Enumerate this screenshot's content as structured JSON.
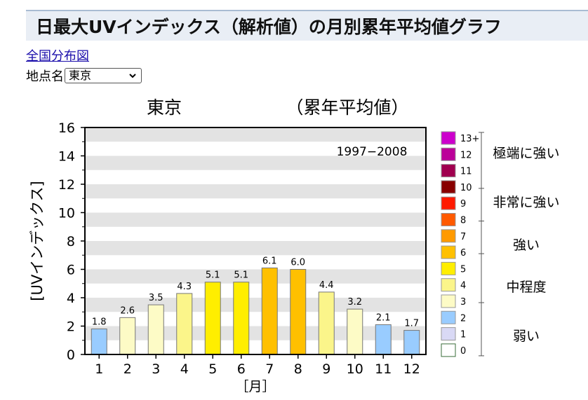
{
  "page": {
    "title": "日最大UVインデックス（解析値）の月別累年平均値グラフ",
    "nav_link": "全国分布図",
    "location_label": "地点名",
    "location_selected": "東京"
  },
  "chart_data": {
    "type": "bar",
    "title": "東京",
    "subtitle": "（累年平均値）",
    "annotation": "1997−2008",
    "ylabel": "[UVインデックス]",
    "xlabel": "［月］",
    "categories": [
      "1",
      "2",
      "3",
      "4",
      "5",
      "6",
      "7",
      "8",
      "9",
      "10",
      "11",
      "12"
    ],
    "values": [
      1.8,
      2.6,
      3.5,
      4.3,
      5.1,
      5.1,
      6.1,
      6.0,
      4.4,
      3.2,
      2.1,
      1.7
    ],
    "value_labels": [
      "1.8",
      "2.6",
      "3.5",
      "4.3",
      "5.1",
      "5.1",
      "6.1",
      "6.0",
      "4.4",
      "3.2",
      "2.1",
      "1.7"
    ],
    "ylim": [
      0,
      16
    ],
    "yticks": [
      "0",
      "2",
      "4",
      "6",
      "8",
      "10",
      "12",
      "14",
      "16"
    ],
    "grid": "alternating horizontal bands",
    "legend": {
      "placement": "right",
      "levels": [
        {
          "label": "13+",
          "color": "#cc00cc"
        },
        {
          "label": "12",
          "color": "#bb0099"
        },
        {
          "label": "11",
          "color": "#a0004f"
        },
        {
          "label": "10",
          "color": "#880000"
        },
        {
          "label": "9",
          "color": "#ff1a00"
        },
        {
          "label": "8",
          "color": "#ff5a00"
        },
        {
          "label": "7",
          "color": "#ff9a00"
        },
        {
          "label": "6",
          "color": "#ffc000"
        },
        {
          "label": "5",
          "color": "#ffee00"
        },
        {
          "label": "4",
          "color": "#fbf58a"
        },
        {
          "label": "3",
          "color": "#fdfbc6"
        },
        {
          "label": "2",
          "color": "#99ccff"
        },
        {
          "label": "1",
          "color": "#d9d9f5"
        },
        {
          "label": "0",
          "color": "#ffffff"
        }
      ],
      "categories": [
        "極端に強い",
        "非常に強い",
        "強い",
        "中程度",
        "弱い"
      ]
    }
  }
}
